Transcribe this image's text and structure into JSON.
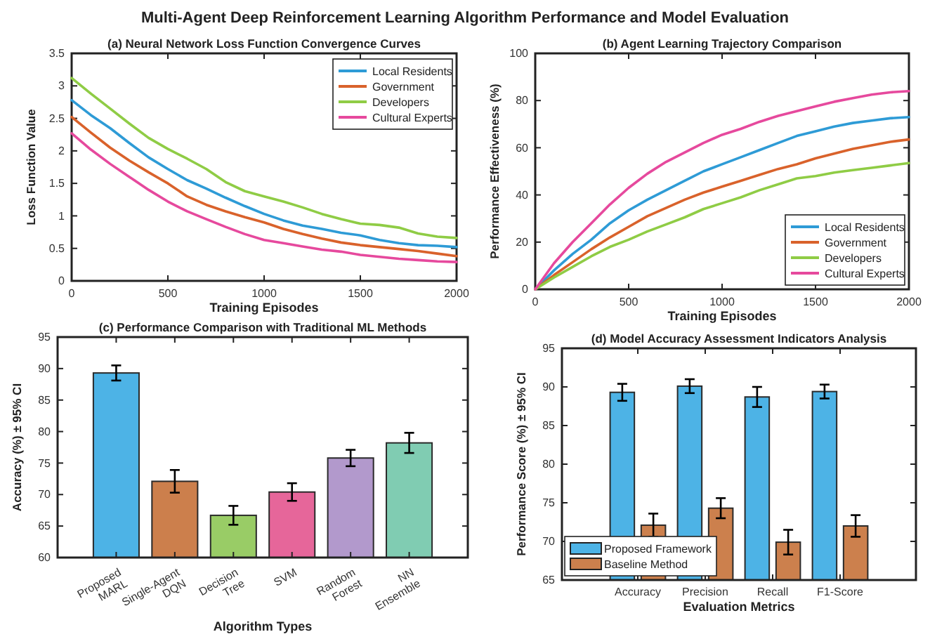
{
  "chart_data": [
    {
      "type": "other",
      "title": "Multi-Agent Deep Reinforcement Learning Algorithm Performance and Model Evaluation"
    },
    {
      "type": "line",
      "title": "(a) Neural Network Loss Function Convergence Curves",
      "xlabel": "Training Episodes",
      "ylabel": "Loss Function Value",
      "xlim": [
        0,
        2000
      ],
      "ylim": [
        0,
        3.5
      ],
      "xticks": [
        0,
        500,
        1000,
        1500,
        2000
      ],
      "yticks": [
        0,
        0.5,
        1,
        1.5,
        2,
        2.5,
        3,
        3.5
      ],
      "legend": "top right",
      "x": [
        0,
        100,
        200,
        300,
        400,
        500,
        600,
        700,
        800,
        900,
        1000,
        1100,
        1200,
        1300,
        1400,
        1500,
        1600,
        1700,
        1800,
        1900,
        2000
      ],
      "series": [
        {
          "name": "Local Residents",
          "color": "#2e9bd6",
          "values": [
            2.78,
            2.55,
            2.35,
            2.12,
            1.9,
            1.72,
            1.55,
            1.42,
            1.28,
            1.15,
            1.03,
            0.93,
            0.85,
            0.8,
            0.74,
            0.7,
            0.63,
            0.58,
            0.55,
            0.54,
            0.52
          ]
        },
        {
          "name": "Government",
          "color": "#d9622b",
          "values": [
            2.52,
            2.28,
            2.05,
            1.85,
            1.67,
            1.5,
            1.3,
            1.17,
            1.07,
            0.98,
            0.9,
            0.8,
            0.72,
            0.65,
            0.59,
            0.55,
            0.52,
            0.49,
            0.46,
            0.42,
            0.38
          ]
        },
        {
          "name": "Developers",
          "color": "#8fcc45",
          "values": [
            3.12,
            2.88,
            2.65,
            2.42,
            2.2,
            2.03,
            1.88,
            1.72,
            1.52,
            1.38,
            1.3,
            1.22,
            1.13,
            1.03,
            0.95,
            0.88,
            0.86,
            0.82,
            0.73,
            0.68,
            0.66
          ]
        },
        {
          "name": "Cultural Experts",
          "color": "#e6499d",
          "values": [
            2.27,
            2.02,
            1.8,
            1.6,
            1.4,
            1.22,
            1.07,
            0.95,
            0.83,
            0.72,
            0.63,
            0.58,
            0.53,
            0.48,
            0.45,
            0.4,
            0.37,
            0.34,
            0.32,
            0.3,
            0.29
          ]
        }
      ]
    },
    {
      "type": "line",
      "title": "(b) Agent Learning Trajectory Comparison",
      "xlabel": "Training Episodes",
      "ylabel": "Performance Effectiveness (%)",
      "xlim": [
        0,
        2000
      ],
      "ylim": [
        0,
        100
      ],
      "xticks": [
        0,
        500,
        1000,
        1500,
        2000
      ],
      "yticks": [
        0,
        20,
        40,
        60,
        80,
        100
      ],
      "legend": "bottom right",
      "x": [
        0,
        100,
        200,
        300,
        400,
        500,
        600,
        700,
        800,
        900,
        1000,
        1100,
        1200,
        1300,
        1400,
        1500,
        1600,
        1700,
        1800,
        1900,
        2000
      ],
      "series": [
        {
          "name": "Local Residents",
          "color": "#2e9bd6",
          "values": [
            0,
            8,
            15,
            21,
            28,
            33.5,
            38,
            42,
            46,
            50,
            53,
            56,
            59,
            62,
            65,
            67,
            69,
            70.5,
            71.5,
            72.5,
            73
          ]
        },
        {
          "name": "Government",
          "color": "#d9622b",
          "values": [
            0,
            6,
            11.5,
            17,
            22,
            26.5,
            31,
            34.5,
            38,
            41,
            43.5,
            46,
            48.5,
            51,
            53,
            55.5,
            57.5,
            59.5,
            61,
            62.5,
            63.5
          ]
        },
        {
          "name": "Developers",
          "color": "#8fcc45",
          "values": [
            0,
            5,
            9.5,
            14,
            18,
            21,
            24.5,
            27.5,
            30.5,
            34,
            36.5,
            39,
            42,
            44.5,
            47,
            48,
            49.5,
            50.5,
            51.5,
            52.5,
            53.5
          ]
        },
        {
          "name": "Cultural Experts",
          "color": "#e6499d",
          "values": [
            0,
            11,
            20,
            28,
            36,
            43,
            49,
            54,
            58,
            62,
            65.5,
            68,
            71,
            73.5,
            75.5,
            77.5,
            79.5,
            81,
            82.5,
            83.5,
            84
          ]
        }
      ]
    },
    {
      "type": "bar",
      "title": "(c) Performance Comparison with Traditional ML Methods",
      "xlabel": "Algorithm Types",
      "ylabel": "Accuracy (%) ± 95% CI",
      "ylim": [
        60,
        95
      ],
      "yticks": [
        60,
        65,
        70,
        75,
        80,
        85,
        90,
        95
      ],
      "categories": [
        "Proposed\nMARL",
        "Single-Agent\nDQN",
        "Decision\nTree",
        "SVM",
        "Random\nForest",
        "NN\nEnsemble"
      ],
      "values": [
        89.3,
        72.1,
        66.7,
        70.4,
        75.8,
        78.2
      ],
      "errors": [
        1.2,
        1.8,
        1.5,
        1.4,
        1.3,
        1.6
      ],
      "colors": [
        "#4db3e6",
        "#cc7f4c",
        "#99cc66",
        "#e6669a",
        "#b299cc",
        "#80ccb2"
      ]
    },
    {
      "type": "bar",
      "title": "(d) Model Accuracy Assessment Indicators Analysis",
      "xlabel": "Evaluation Metrics",
      "ylabel": "Performance Score (%) ± 95% CI",
      "ylim": [
        65,
        95
      ],
      "yticks": [
        65,
        70,
        75,
        80,
        85,
        90,
        95
      ],
      "legend": "bottom left",
      "categories": [
        "Accuracy",
        "Precision",
        "Recall",
        "F1-Score"
      ],
      "series": [
        {
          "name": "Proposed Framework",
          "color": "#4db3e6",
          "values": [
            89.3,
            90.1,
            88.7,
            89.4
          ],
          "errors": [
            1.1,
            0.9,
            1.3,
            0.9
          ]
        },
        {
          "name": "Baseline Method",
          "color": "#cc804d",
          "values": [
            72.1,
            74.3,
            69.9,
            72.0
          ],
          "errors": [
            1.5,
            1.3,
            1.6,
            1.4
          ]
        }
      ]
    }
  ]
}
